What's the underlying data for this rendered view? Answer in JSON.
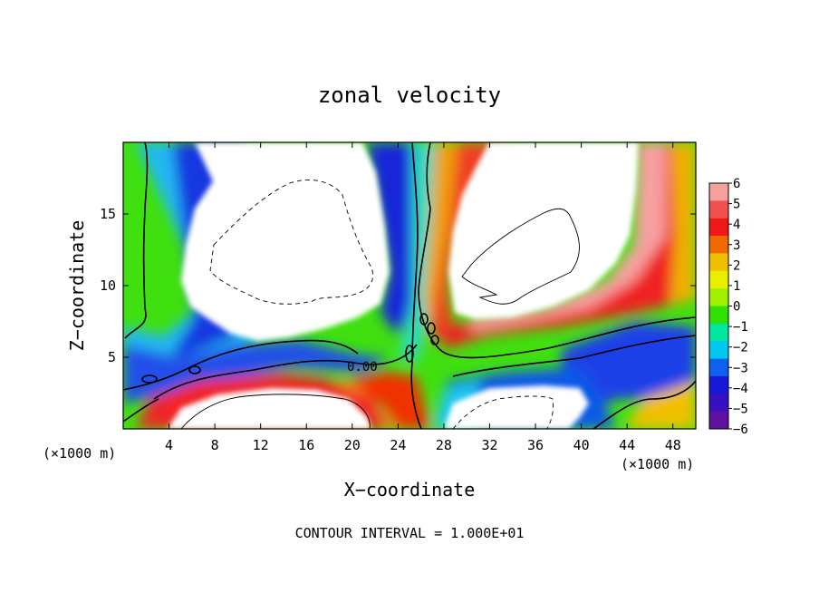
{
  "chart_data": {
    "type": "heatmap",
    "title": "zonal velocity",
    "xlabel": "X−coordinate",
    "ylabel": "Z−coordinate",
    "x_unit_left": "(×1000 m)",
    "x_unit_right": "(×1000 m)",
    "footer": "CONTOUR INTERVAL = 1.000E+01",
    "xlim": [
      0,
      50
    ],
    "ylim": [
      0,
      20
    ],
    "x_ticks": [
      4,
      8,
      12,
      16,
      20,
      24,
      28,
      32,
      36,
      40,
      44,
      48
    ],
    "y_ticks": [
      5,
      10,
      15
    ],
    "colorbar": {
      "levels": [
        6,
        5,
        4,
        3,
        2,
        1,
        0,
        -1,
        -2,
        -3,
        -4,
        -5,
        -6
      ],
      "tick_labels": [
        "6",
        "5",
        "4",
        "3",
        "2",
        "1",
        "0",
        "−1",
        "−2",
        "−3",
        "−4",
        "−5",
        "−6"
      ],
      "colors": [
        "#f7a0a0",
        "#f05050",
        "#f01818",
        "#f06a00",
        "#f0c000",
        "#e8f000",
        "#a0f000",
        "#30e000",
        "#00e8a0",
        "#00c8f0",
        "#1060f0",
        "#1818d8",
        "#3810c0",
        "#6010a0"
      ]
    },
    "contour_labels": [
      {
        "text": "0.00",
        "x": 20.5,
        "z": 4.4
      }
    ]
  }
}
